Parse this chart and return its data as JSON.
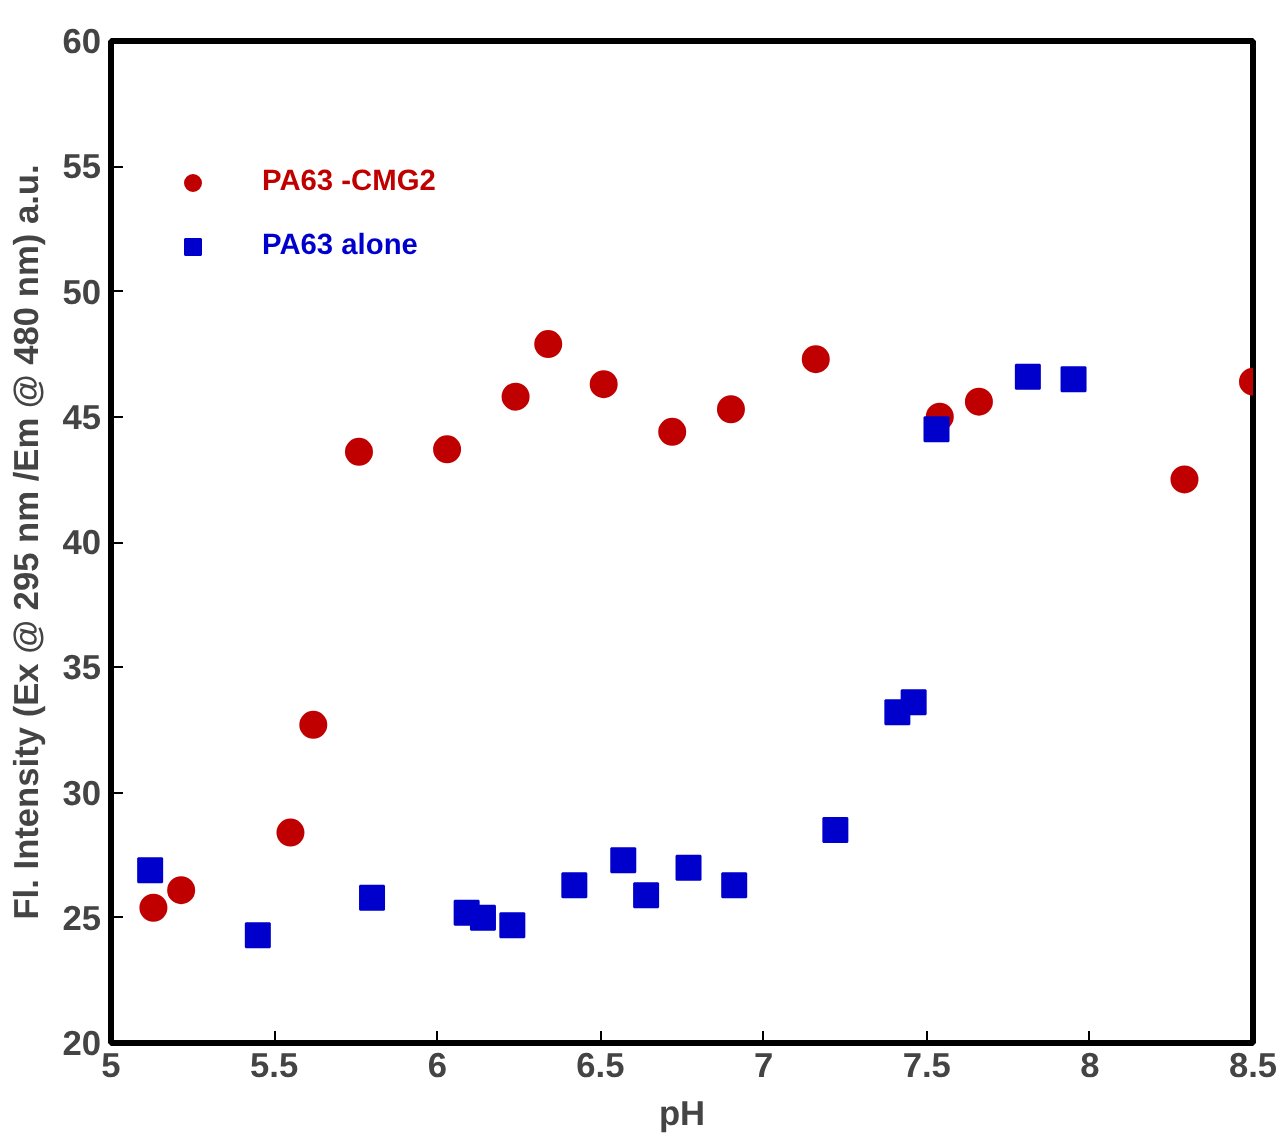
{
  "chart_data": {
    "type": "scatter",
    "xlabel": "pH",
    "ylabel": "Fl. Intensity (Ex @ 295 nm /Em @ 480 nm) a.u.",
    "xlim": [
      5,
      8.5
    ],
    "ylim": [
      20,
      60
    ],
    "xticks": [
      5,
      5.5,
      6,
      6.5,
      7,
      7.5,
      8,
      8.5
    ],
    "yticks": [
      20,
      25,
      30,
      35,
      40,
      45,
      50,
      55,
      60
    ],
    "grid": false,
    "legend": "top left",
    "series": [
      {
        "name": "PA63 -CMG2",
        "color": "#c00000",
        "marker": "circle",
        "x": [
          5.13,
          5.215,
          5.55,
          5.62,
          5.76,
          6.03,
          6.24,
          6.34,
          6.51,
          6.72,
          6.9,
          7.16,
          7.54,
          7.66,
          8.29,
          8.5
        ],
        "values": [
          25.4,
          26.1,
          28.4,
          32.7,
          43.6,
          43.7,
          45.8,
          47.9,
          46.3,
          44.4,
          45.3,
          47.3,
          45.0,
          45.6,
          42.5,
          46.4
        ]
      },
      {
        "name": "PA63 alone",
        "color": "#0000cc",
        "marker": "square",
        "x": [
          5.12,
          5.45,
          5.8,
          6.09,
          6.14,
          6.23,
          6.42,
          6.57,
          6.64,
          6.77,
          6.91,
          7.22,
          7.41,
          7.46,
          7.53,
          7.81,
          7.95
        ],
        "values": [
          26.9,
          24.3,
          25.8,
          25.2,
          25.0,
          24.7,
          26.3,
          27.3,
          25.9,
          27.0,
          26.3,
          28.5,
          33.2,
          33.6,
          44.5,
          46.6,
          46.5
        ]
      }
    ]
  }
}
